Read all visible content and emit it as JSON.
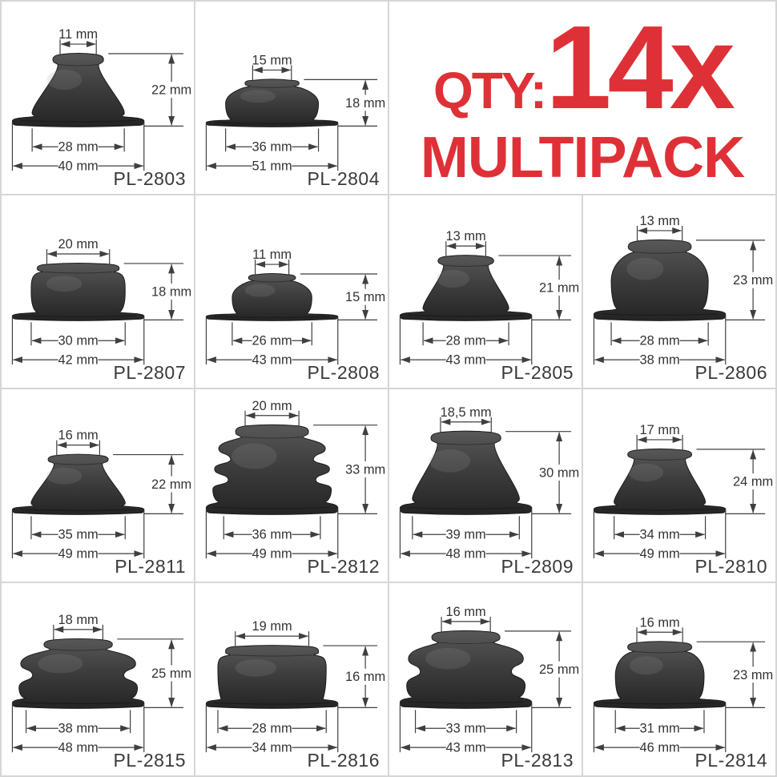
{
  "header": {
    "qty_label": "QTY:",
    "qty_value": "14x",
    "pack_label": "MULTIPACK",
    "accent_color": "#de3137"
  },
  "products": [
    {
      "part": "PL-2803",
      "top": "11 mm",
      "height": "22 mm",
      "inner": "28 mm",
      "outer": "40 mm",
      "shape": "cone"
    },
    {
      "part": "PL-2804",
      "top": "15 mm",
      "height": "18 mm",
      "inner": "36 mm",
      "outer": "51 mm",
      "shape": "dome"
    },
    {
      "part": "PL-2807",
      "top": "20 mm",
      "height": "18 mm",
      "inner": "30 mm",
      "outer": "42 mm",
      "shape": "dome"
    },
    {
      "part": "PL-2808",
      "top": "11 mm",
      "height": "15 mm",
      "inner": "26 mm",
      "outer": "43 mm",
      "shape": "dome"
    },
    {
      "part": "PL-2805",
      "top": "13 mm",
      "height": "21 mm",
      "inner": "28 mm",
      "outer": "43 mm",
      "shape": "cone"
    },
    {
      "part": "PL-2806",
      "top": "13 mm",
      "height": "23 mm",
      "inner": "28 mm",
      "outer": "38 mm",
      "shape": "dome"
    },
    {
      "part": "PL-2811",
      "top": "16 mm",
      "height": "22 mm",
      "inner": "35 mm",
      "outer": "49 mm",
      "shape": "cone"
    },
    {
      "part": "PL-2812",
      "top": "20 mm",
      "height": "33 mm",
      "inner": "36 mm",
      "outer": "49 mm",
      "shape": "bellows3"
    },
    {
      "part": "PL-2809",
      "top": "18,5 mm",
      "height": "30 mm",
      "inner": "39 mm",
      "outer": "48 mm",
      "shape": "cone"
    },
    {
      "part": "PL-2810",
      "top": "17 mm",
      "height": "24 mm",
      "inner": "34 mm",
      "outer": "49 mm",
      "shape": "cone"
    },
    {
      "part": "PL-2815",
      "top": "18 mm",
      "height": "25 mm",
      "inner": "38 mm",
      "outer": "48 mm",
      "shape": "bellows2"
    },
    {
      "part": "PL-2816",
      "top": "19 mm",
      "height": "16 mm",
      "inner": "28 mm",
      "outer": "34 mm",
      "shape": "barrel"
    },
    {
      "part": "PL-2813",
      "top": "16 mm",
      "height": "25 mm",
      "inner": "33 mm",
      "outer": "43 mm",
      "shape": "bellows2"
    },
    {
      "part": "PL-2814",
      "top": "16 mm",
      "height": "23 mm",
      "inner": "31 mm",
      "outer": "46 mm",
      "shape": "dome"
    }
  ]
}
